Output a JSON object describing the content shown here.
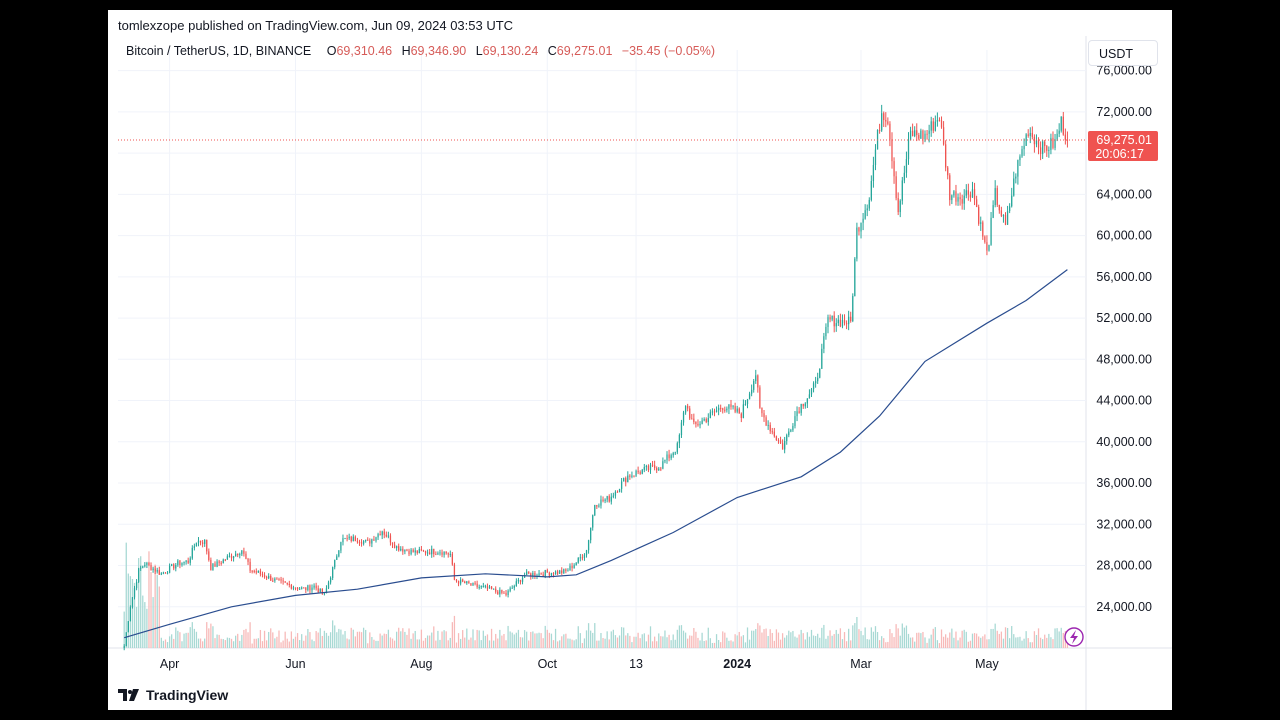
{
  "header": {
    "publisher": "tomlexzope published on TradingView.com, Jun 09, 2024 03:53 UTC"
  },
  "legend": {
    "symbol": "Bitcoin / TetherUS, 1D, BINANCE",
    "open_label": "O",
    "open": "69,310.46",
    "high_label": "H",
    "high": "69,346.90",
    "low_label": "L",
    "low": "69,130.24",
    "close_label": "C",
    "close": "69,275.01",
    "change": "−35.45 (−0.05%)"
  },
  "currency": "USDT",
  "price_tag": {
    "price": "69,275.01",
    "countdown": "20:06:17"
  },
  "footer": {
    "brand": "TradingView"
  },
  "colors": {
    "up": "#26a69a",
    "down": "#ef5350",
    "ma": "#2a4d8f",
    "price_tag": "#ef5350",
    "volume_up": "#a8d9d4",
    "volume_down": "#f7b9b8",
    "lightning": "#9c27b0"
  },
  "chart_data": {
    "type": "candlestick",
    "y_range": [
      20000,
      78000
    ],
    "y_ticks": [
      "76,000.00",
      "72,000.00",
      "68,000.00",
      "64,000.00",
      "60,000.00",
      "56,000.00",
      "52,000.00",
      "48,000.00",
      "44,000.00",
      "40,000.00",
      "36,000.00",
      "32,000.00",
      "28,000.00",
      "24,000.00"
    ],
    "y_tick_values": [
      76000,
      72000,
      68000,
      64000,
      60000,
      56000,
      52000,
      48000,
      44000,
      40000,
      36000,
      32000,
      28000,
      24000
    ],
    "x_ticks": [
      {
        "label": "Apr",
        "date": "2023-04-01",
        "bold": false
      },
      {
        "label": "Jun",
        "date": "2023-06-01",
        "bold": false
      },
      {
        "label": "Aug",
        "date": "2023-08-01",
        "bold": false
      },
      {
        "label": "Oct",
        "date": "2023-10-01",
        "bold": false
      },
      {
        "label": "13",
        "date": "2023-11-13",
        "bold": false
      },
      {
        "label": "2024",
        "date": "2024-01-01",
        "bold": true
      },
      {
        "label": "Mar",
        "date": "2024-03-01",
        "bold": false
      },
      {
        "label": "May",
        "date": "2024-05-01",
        "bold": false
      }
    ],
    "x_range": [
      "2023-03-07",
      "2024-06-18"
    ],
    "last_price": 69275.01,
    "close_path": [
      [
        "2023-03-10",
        20200
      ],
      [
        "2023-03-13",
        24100
      ],
      [
        "2023-03-17",
        27500
      ],
      [
        "2023-03-20",
        28200
      ],
      [
        "2023-03-28",
        27200
      ],
      [
        "2023-04-05",
        28200
      ],
      [
        "2023-04-10",
        28400
      ],
      [
        "2023-04-14",
        30400
      ],
      [
        "2023-04-18",
        30300
      ],
      [
        "2023-04-21",
        27800
      ],
      [
        "2023-04-26",
        28400
      ],
      [
        "2023-05-06",
        29500
      ],
      [
        "2023-05-10",
        27600
      ],
      [
        "2023-05-15",
        27200
      ],
      [
        "2023-05-25",
        26300
      ],
      [
        "2023-06-05",
        25700
      ],
      [
        "2023-06-10",
        26000
      ],
      [
        "2023-06-15",
        25100
      ],
      [
        "2023-06-20",
        28300
      ],
      [
        "2023-06-23",
        30500
      ],
      [
        "2023-07-01",
        30600
      ],
      [
        "2023-07-06",
        30200
      ],
      [
        "2023-07-13",
        31400
      ],
      [
        "2023-07-20",
        29800
      ],
      [
        "2023-07-28",
        29300
      ],
      [
        "2023-08-10",
        29400
      ],
      [
        "2023-08-15",
        29100
      ],
      [
        "2023-08-17",
        26600
      ],
      [
        "2023-08-25",
        26100
      ],
      [
        "2023-09-01",
        25800
      ],
      [
        "2023-09-11",
        25200
      ],
      [
        "2023-09-20",
        27100
      ],
      [
        "2023-10-01",
        27300
      ],
      [
        "2023-10-10",
        27400
      ],
      [
        "2023-10-16",
        28500
      ],
      [
        "2023-10-20",
        29500
      ],
      [
        "2023-10-24",
        34000
      ],
      [
        "2023-10-31",
        34500
      ],
      [
        "2023-11-09",
        36700
      ],
      [
        "2023-11-13",
        37000
      ],
      [
        "2023-11-25",
        37700
      ],
      [
        "2023-12-03",
        39500
      ],
      [
        "2023-12-07",
        43700
      ],
      [
        "2023-12-11",
        41500
      ],
      [
        "2023-12-18",
        42400
      ],
      [
        "2023-12-25",
        43500
      ],
      [
        "2024-01-03",
        42700
      ],
      [
        "2024-01-10",
        46600
      ],
      [
        "2024-01-12",
        43000
      ],
      [
        "2024-01-18",
        41000
      ],
      [
        "2024-01-23",
        39500
      ],
      [
        "2024-01-30",
        43000
      ],
      [
        "2024-02-08",
        45500
      ],
      [
        "2024-02-14",
        51800
      ],
      [
        "2024-02-25",
        51600
      ],
      [
        "2024-02-28",
        60500
      ],
      [
        "2024-03-05",
        63800
      ],
      [
        "2024-03-08",
        68300
      ],
      [
        "2024-03-11",
        72100
      ],
      [
        "2024-03-14",
        71400
      ],
      [
        "2024-03-19",
        62400
      ],
      [
        "2024-03-25",
        69900
      ],
      [
        "2024-04-01",
        69700
      ],
      [
        "2024-04-08",
        71600
      ],
      [
        "2024-04-13",
        64000
      ],
      [
        "2024-04-19",
        63800
      ],
      [
        "2024-04-24",
        64500
      ],
      [
        "2024-05-01",
        58200
      ],
      [
        "2024-05-05",
        64000
      ],
      [
        "2024-05-10",
        60800
      ],
      [
        "2024-05-15",
        66200
      ],
      [
        "2024-05-21",
        70300
      ],
      [
        "2024-05-28",
        68400
      ],
      [
        "2024-06-03",
        69000
      ],
      [
        "2024-06-06",
        71000
      ],
      [
        "2024-06-09",
        69275
      ]
    ],
    "moving_average": [
      [
        "2023-03-10",
        21000
      ],
      [
        "2023-04-01",
        22300
      ],
      [
        "2023-05-01",
        24000
      ],
      [
        "2023-06-01",
        25100
      ],
      [
        "2023-07-01",
        25700
      ],
      [
        "2023-08-01",
        26800
      ],
      [
        "2023-09-01",
        27200
      ],
      [
        "2023-10-01",
        26900
      ],
      [
        "2023-10-15",
        27100
      ],
      [
        "2023-11-01",
        28500
      ],
      [
        "2023-12-01",
        31200
      ],
      [
        "2024-01-01",
        34600
      ],
      [
        "2024-02-01",
        36600
      ],
      [
        "2024-02-20",
        39000
      ],
      [
        "2024-03-10",
        42500
      ],
      [
        "2024-04-01",
        47800
      ],
      [
        "2024-05-01",
        51500
      ],
      [
        "2024-05-20",
        53700
      ],
      [
        "2024-06-09",
        56700
      ]
    ]
  }
}
